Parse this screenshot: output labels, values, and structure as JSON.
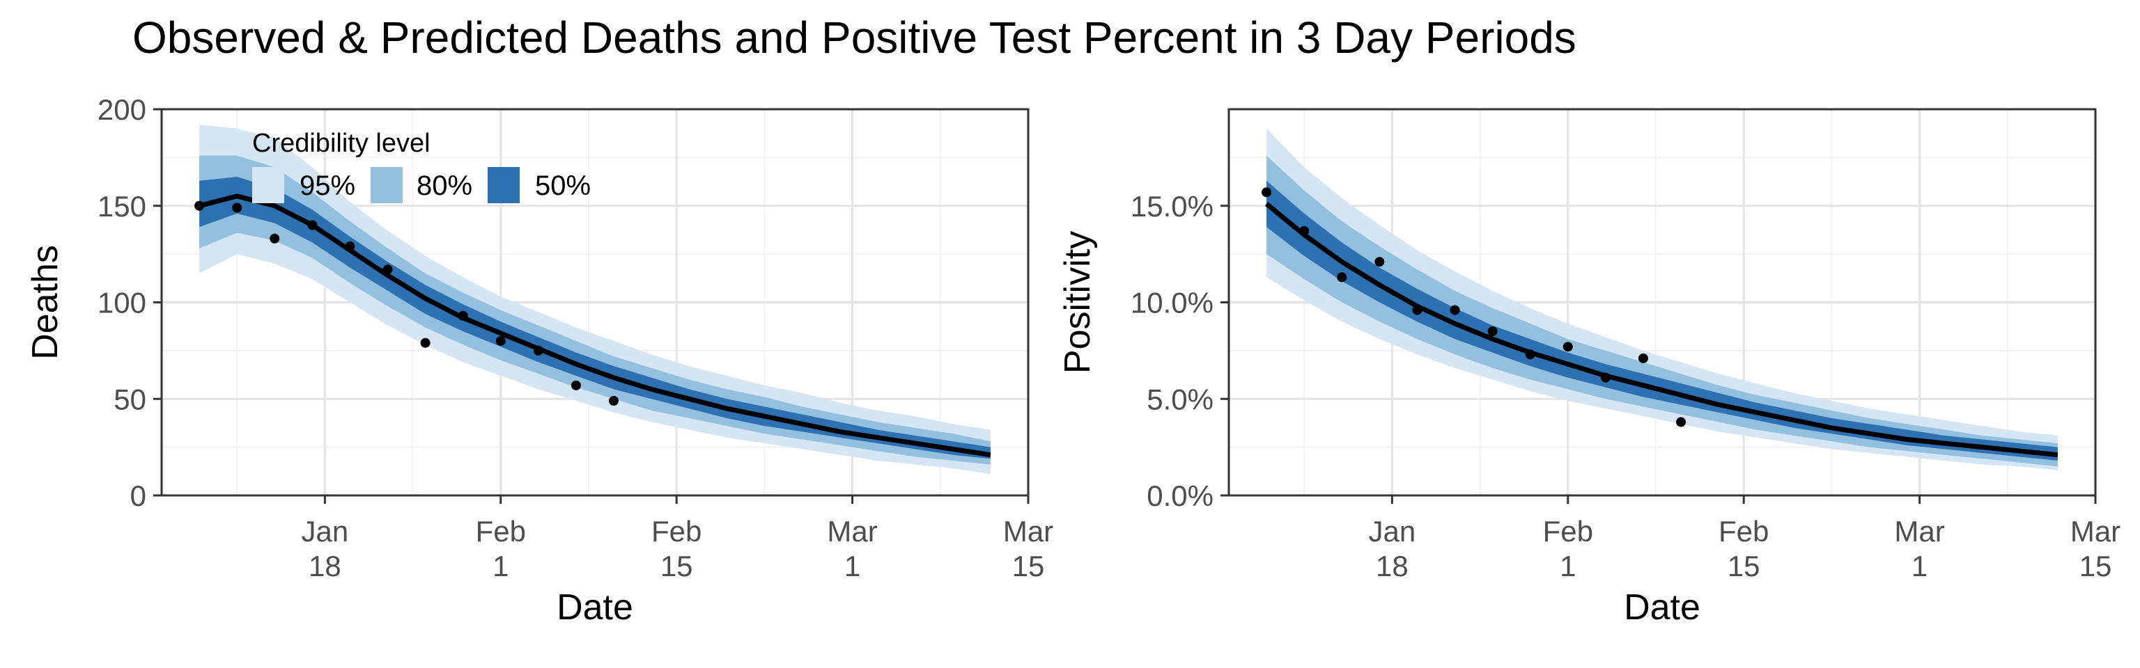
{
  "figure": {
    "title": "Observed & Predicted Deaths and Positive Test Percent in 3 Day Periods"
  },
  "colors": {
    "band95": "#d6e5f4",
    "band80": "#93c0de",
    "band50": "#2d71b3",
    "median": "#000000",
    "points": "#000000",
    "grid_major": "#e3e3e3",
    "grid_minor": "#f2f2f2",
    "panel_border": "#333333"
  },
  "legend": {
    "title": "Credibility level",
    "placement": "top-left inside left panel",
    "items": [
      {
        "label": "95%",
        "color": "#d6e5f4"
      },
      {
        "label": "80%",
        "color": "#93c0de"
      },
      {
        "label": "50%",
        "color": "#2d71b3"
      }
    ]
  },
  "chart_data": [
    {
      "type": "area",
      "xlabel": "Date",
      "ylabel": "Deaths",
      "xlim": [
        "2021-01-05",
        "2021-03-15"
      ],
      "ylim": [
        0,
        200
      ],
      "grid": true,
      "x_ticks": [
        {
          "date": "2021-01-18",
          "line1": "Jan",
          "line2": "18"
        },
        {
          "date": "2021-02-01",
          "line1": "Feb",
          "line2": "1"
        },
        {
          "date": "2021-02-15",
          "line1": "Feb",
          "line2": "15"
        },
        {
          "date": "2021-03-01",
          "line1": "Mar",
          "line2": "1"
        },
        {
          "date": "2021-03-15",
          "line1": "Mar",
          "line2": "15"
        }
      ],
      "y_ticks": [
        {
          "value": 0,
          "label": "0"
        },
        {
          "value": 50,
          "label": "50"
        },
        {
          "value": 100,
          "label": "100"
        },
        {
          "value": 150,
          "label": "150"
        },
        {
          "value": 200,
          "label": "200"
        }
      ],
      "x": [
        "2021-01-08",
        "2021-01-11",
        "2021-01-14",
        "2021-01-17",
        "2021-01-20",
        "2021-01-23",
        "2021-01-26",
        "2021-01-29",
        "2021-02-01",
        "2021-02-04",
        "2021-02-07",
        "2021-02-10",
        "2021-02-13",
        "2021-02-16",
        "2021-02-19",
        "2021-02-22",
        "2021-02-25",
        "2021-02-28",
        "2021-03-03",
        "2021-03-06",
        "2021-03-09",
        "2021-03-12"
      ],
      "series": [
        {
          "name": "Median",
          "values": [
            150,
            155,
            150,
            140,
            127,
            114,
            102,
            92,
            84,
            76,
            68,
            61,
            55,
            50,
            45,
            41,
            37,
            33,
            30,
            27,
            24,
            21
          ]
        },
        {
          "name": "95% lower",
          "values": [
            115,
            125,
            120,
            112,
            100,
            88,
            78,
            69,
            62,
            55,
            49,
            43,
            38,
            34,
            30,
            27,
            24,
            21,
            18,
            16,
            14,
            11
          ]
        },
        {
          "name": "95% upper",
          "values": [
            192,
            190,
            185,
            170,
            152,
            137,
            124,
            113,
            103,
            95,
            87,
            80,
            73,
            67,
            62,
            57,
            53,
            48,
            44,
            41,
            37,
            34
          ]
        },
        {
          "name": "80% lower",
          "values": [
            128,
            136,
            132,
            123,
            110,
            98,
            87,
            78,
            70,
            63,
            56,
            50,
            44,
            40,
            36,
            32,
            29,
            26,
            23,
            20,
            18,
            16
          ]
        },
        {
          "name": "80% upper",
          "values": [
            176,
            176,
            170,
            157,
            142,
            128,
            115,
            105,
            96,
            88,
            80,
            72,
            66,
            60,
            55,
            51,
            46,
            42,
            38,
            35,
            32,
            28
          ]
        },
        {
          "name": "50% lower",
          "values": [
            139,
            146,
            141,
            131,
            118,
            106,
            94,
            85,
            77,
            69,
            62,
            55,
            50,
            45,
            40,
            36,
            33,
            30,
            27,
            24,
            21,
            19
          ]
        },
        {
          "name": "50% upper",
          "values": [
            163,
            165,
            159,
            148,
            134,
            121,
            109,
            99,
            90,
            82,
            74,
            67,
            61,
            55,
            50,
            46,
            42,
            38,
            34,
            31,
            28,
            25
          ]
        }
      ],
      "observed": {
        "x": [
          "2021-01-08",
          "2021-01-11",
          "2021-01-14",
          "2021-01-17",
          "2021-01-20",
          "2021-01-23",
          "2021-01-26",
          "2021-01-29",
          "2021-02-01",
          "2021-02-04",
          "2021-02-07",
          "2021-02-10"
        ],
        "values": [
          150,
          149,
          133,
          140,
          129,
          117,
          79,
          93,
          80,
          75,
          57,
          49
        ]
      }
    },
    {
      "type": "area",
      "xlabel": "Date",
      "ylabel": "Positivity",
      "xlim": [
        "2021-01-05",
        "2021-03-15"
      ],
      "ylim": [
        0,
        0.2
      ],
      "grid": true,
      "x_ticks": [
        {
          "date": "2021-01-18",
          "line1": "Jan",
          "line2": "18"
        },
        {
          "date": "2021-02-01",
          "line1": "Feb",
          "line2": "1"
        },
        {
          "date": "2021-02-15",
          "line1": "Feb",
          "line2": "15"
        },
        {
          "date": "2021-03-01",
          "line1": "Mar",
          "line2": "1"
        },
        {
          "date": "2021-03-15",
          "line1": "Mar",
          "line2": "15"
        }
      ],
      "y_ticks": [
        {
          "value": 0,
          "label": "0.0%"
        },
        {
          "value": 0.05,
          "label": "5.0%"
        },
        {
          "value": 0.1,
          "label": "10.0%"
        },
        {
          "value": 0.15,
          "label": "15.0%"
        }
      ],
      "x": [
        "2021-01-08",
        "2021-01-11",
        "2021-01-14",
        "2021-01-17",
        "2021-01-20",
        "2021-01-23",
        "2021-01-26",
        "2021-01-29",
        "2021-02-01",
        "2021-02-04",
        "2021-02-07",
        "2021-02-10",
        "2021-02-13",
        "2021-02-16",
        "2021-02-19",
        "2021-02-22",
        "2021-02-25",
        "2021-02-28",
        "2021-03-03",
        "2021-03-06",
        "2021-03-09",
        "2021-03-12"
      ],
      "series": [
        {
          "name": "Median",
          "values": [
            0.151,
            0.135,
            0.121,
            0.109,
            0.098,
            0.089,
            0.081,
            0.074,
            0.068,
            0.062,
            0.057,
            0.052,
            0.047,
            0.043,
            0.039,
            0.035,
            0.032,
            0.029,
            0.027,
            0.025,
            0.023,
            0.021
          ]
        },
        {
          "name": "95% lower",
          "values": [
            0.113,
            0.101,
            0.09,
            0.081,
            0.073,
            0.066,
            0.06,
            0.054,
            0.049,
            0.045,
            0.041,
            0.037,
            0.033,
            0.03,
            0.027,
            0.024,
            0.022,
            0.02,
            0.018,
            0.016,
            0.015,
            0.013
          ]
        },
        {
          "name": "95% upper",
          "values": [
            0.19,
            0.17,
            0.154,
            0.14,
            0.127,
            0.116,
            0.106,
            0.097,
            0.089,
            0.082,
            0.075,
            0.069,
            0.063,
            0.058,
            0.053,
            0.049,
            0.045,
            0.042,
            0.039,
            0.036,
            0.033,
            0.031
          ]
        },
        {
          "name": "80% lower",
          "values": [
            0.125,
            0.112,
            0.1,
            0.09,
            0.081,
            0.073,
            0.066,
            0.06,
            0.055,
            0.05,
            0.046,
            0.042,
            0.038,
            0.034,
            0.031,
            0.028,
            0.025,
            0.023,
            0.021,
            0.019,
            0.017,
            0.015
          ]
        },
        {
          "name": "80% upper",
          "values": [
            0.176,
            0.158,
            0.142,
            0.129,
            0.117,
            0.106,
            0.097,
            0.089,
            0.081,
            0.075,
            0.069,
            0.063,
            0.057,
            0.052,
            0.048,
            0.044,
            0.04,
            0.037,
            0.034,
            0.031,
            0.029,
            0.027
          ]
        },
        {
          "name": "50% lower",
          "values": [
            0.139,
            0.124,
            0.111,
            0.1,
            0.09,
            0.081,
            0.074,
            0.067,
            0.061,
            0.056,
            0.051,
            0.047,
            0.043,
            0.039,
            0.035,
            0.032,
            0.029,
            0.026,
            0.024,
            0.022,
            0.02,
            0.018
          ]
        },
        {
          "name": "50% upper",
          "values": [
            0.163,
            0.146,
            0.131,
            0.118,
            0.107,
            0.097,
            0.088,
            0.081,
            0.074,
            0.068,
            0.063,
            0.058,
            0.053,
            0.048,
            0.044,
            0.04,
            0.037,
            0.034,
            0.031,
            0.029,
            0.027,
            0.025
          ]
        }
      ],
      "observed": {
        "x": [
          "2021-01-08",
          "2021-01-11",
          "2021-01-14",
          "2021-01-17",
          "2021-01-20",
          "2021-01-23",
          "2021-01-26",
          "2021-01-29",
          "2021-02-01",
          "2021-02-04",
          "2021-02-07",
          "2021-02-10"
        ],
        "values": [
          0.157,
          0.137,
          0.113,
          0.121,
          0.096,
          0.096,
          0.085,
          0.073,
          0.077,
          0.061,
          0.071,
          0.038
        ]
      }
    }
  ]
}
